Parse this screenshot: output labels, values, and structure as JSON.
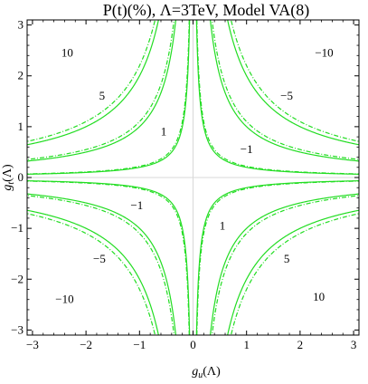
{
  "chart_data": {
    "type": "line",
    "title": "P(t)(%), Λ=3TeV, Model VA(8)",
    "xlabel": "g_u(Λ)",
    "ylabel": "g_t(Λ)",
    "xlabel_main": "g",
    "xlabel_sub": "u",
    "xlabel_tail": "(Λ)",
    "ylabel_main": "g",
    "ylabel_sub": "t",
    "ylabel_tail": "(Λ)",
    "xlim": [
      -3.1,
      3.1
    ],
    "ylim": [
      -3.1,
      3.1
    ],
    "xticks": [
      -3,
      -2,
      -1,
      0,
      1,
      2,
      3
    ],
    "yticks": [
      -3,
      -2,
      -1,
      0,
      1,
      2,
      3
    ],
    "xtick_labels": [
      "−3",
      "−2",
      "−1",
      "0",
      "1",
      "2",
      "3"
    ],
    "ytick_labels": [
      "−3",
      "−2",
      "−1",
      "0",
      "1",
      "2",
      "3"
    ],
    "grid": false,
    "contour_levels": [
      1,
      5,
      10,
      -1,
      -5,
      -10
    ],
    "series": [
      {
        "level": 1,
        "style": "solid",
        "products": [
          0.2,
          -0.2
        ]
      },
      {
        "level": 1,
        "style": "dashed",
        "products": [
          0.22,
          -0.22
        ]
      },
      {
        "level": 5,
        "style": "solid",
        "products": [
          1.0,
          -1.0
        ]
      },
      {
        "level": 5,
        "style": "dashed",
        "products": [
          1.1,
          -1.1
        ]
      },
      {
        "level": 10,
        "style": "solid",
        "products": [
          2.0,
          -2.0
        ]
      },
      {
        "level": 10,
        "style": "dashed",
        "products": [
          2.2,
          -2.2
        ]
      }
    ],
    "contour_labels": [
      {
        "text": "10",
        "x": -2.35,
        "y": 2.45
      },
      {
        "text": "5",
        "x": -1.7,
        "y": 1.6
      },
      {
        "text": "1",
        "x": -0.55,
        "y": 0.9
      },
      {
        "text": "−10",
        "x": 2.45,
        "y": 2.45
      },
      {
        "text": "−5",
        "x": 1.75,
        "y": 1.6
      },
      {
        "text": "−1",
        "x": 1.0,
        "y": 0.55
      },
      {
        "text": "−1",
        "x": -1.05,
        "y": -0.55
      },
      {
        "text": "1",
        "x": 0.55,
        "y": -0.95
      },
      {
        "text": "−5",
        "x": -1.75,
        "y": -1.6
      },
      {
        "text": "5",
        "x": 1.75,
        "y": -1.6
      },
      {
        "text": "−10",
        "x": -2.4,
        "y": -2.4
      },
      {
        "text": "10",
        "x": 2.35,
        "y": -2.35
      }
    ],
    "colors": {
      "contour": "#22dd22",
      "zero_axis": "#d8d8d8",
      "frame": "#000000"
    }
  }
}
